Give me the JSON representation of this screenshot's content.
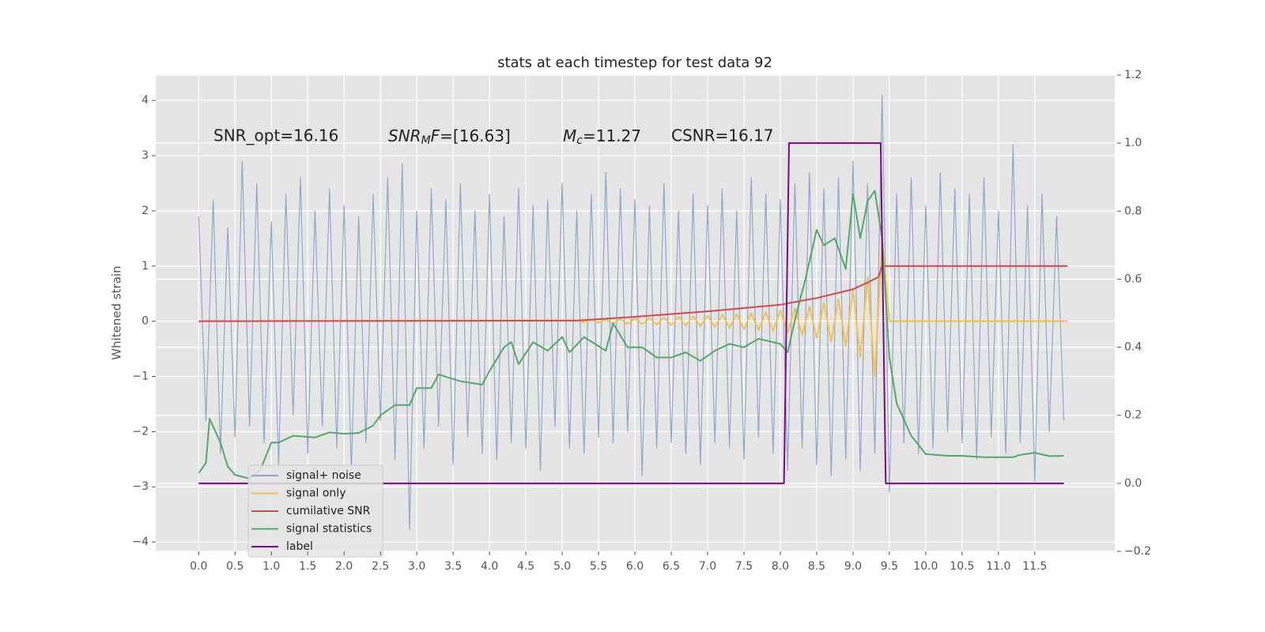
{
  "chart_data": {
    "type": "line",
    "title": "stats at each timestep for test data 92",
    "ylabel": "Whitened strain",
    "annotations": [
      "SNR_opt=16.16",
      [
        "SNR",
        "M",
        "F",
        "=[16.63]"
      ],
      [
        "M",
        "c",
        "=11.27"
      ],
      "CSNR=16.17"
    ],
    "xlim": [
      -0.59,
      12.6
    ],
    "xticks": [
      {
        "value": 0,
        "label": "0.0"
      },
      0.5,
      {
        "value": 1,
        "label": "1.0"
      },
      1.5,
      {
        "value": 2,
        "label": "2.0"
      },
      2.5,
      {
        "value": 3,
        "label": "3.0"
      },
      3.5,
      {
        "value": 4,
        "label": "4.0"
      },
      4.5,
      {
        "value": 5,
        "label": "5.0"
      },
      5.5,
      {
        "value": 6,
        "label": "6.0"
      },
      6.5,
      {
        "value": 7,
        "label": "7.0"
      },
      7.5,
      {
        "value": 8,
        "label": "8.0"
      },
      8.5,
      {
        "value": 9,
        "label": "9.0"
      },
      9.5,
      {
        "value": 10,
        "label": "10.0"
      },
      10.5,
      {
        "value": 11,
        "label": "11.0"
      },
      11.5
    ],
    "ylim": [
      -4.17,
      4.46
    ],
    "yticks": [
      {
        "value": -4,
        "label": "−4"
      },
      {
        "value": -3,
        "label": "−3"
      },
      {
        "value": -2,
        "label": "−2"
      },
      {
        "value": -1,
        "label": "−1"
      },
      0,
      1,
      2,
      3,
      4
    ],
    "y2lim": [
      -0.2,
      1.2
    ],
    "y2ticks": [
      {
        "value": -0.2,
        "label": "−0.2"
      },
      {
        "value": 0,
        "label": "0.0"
      },
      0.2,
      0.4,
      0.6,
      0.8,
      {
        "value": 1,
        "label": "1.0"
      },
      1.2
    ],
    "grid": true,
    "legend": "lower left",
    "series": [
      {
        "name": "signal+ noise",
        "color": "#92a6cb",
        "x": [
          0,
          0.1,
          0.2,
          0.3,
          0.4,
          0.5,
          0.6,
          0.7,
          0.8,
          0.9,
          1,
          1.1,
          1.2,
          1.3,
          1.4,
          1.5,
          1.6,
          1.7,
          1.8,
          1.9,
          2,
          2.1,
          2.2,
          2.3,
          2.4,
          2.5,
          2.6,
          2.7,
          2.8,
          2.9,
          3,
          3.1,
          3.2,
          3.3,
          3.4,
          3.5,
          3.6,
          3.7,
          3.8,
          3.9,
          4,
          4.1,
          4.2,
          4.3,
          4.4,
          4.5,
          4.6,
          4.7,
          4.8,
          4.9,
          5,
          5.1,
          5.2,
          5.3,
          5.4,
          5.5,
          5.6,
          5.7,
          5.8,
          5.9,
          6,
          6.1,
          6.2,
          6.3,
          6.4,
          6.5,
          6.6,
          6.7,
          6.8,
          6.9,
          7,
          7.1,
          7.2,
          7.3,
          7.4,
          7.5,
          7.6,
          7.7,
          7.8,
          7.9,
          8,
          8.1,
          8.2,
          8.3,
          8.4,
          8.5,
          8.6,
          8.7,
          8.8,
          8.9,
          9,
          9.1,
          9.2,
          9.3,
          9.4,
          9.5,
          9.6,
          9.7,
          9.8,
          9.9,
          10,
          10.1,
          10.2,
          10.3,
          10.4,
          10.5,
          10.6,
          10.7,
          10.8,
          10.9,
          11,
          11.1,
          11.2,
          11.3,
          11.4,
          11.5,
          11.6,
          11.7,
          11.8,
          11.9
        ],
        "values": [
          1.9,
          -1.8,
          2.2,
          -2.4,
          1.7,
          -2.1,
          2.9,
          -1.9,
          2.5,
          -2.2,
          1.8,
          -2.6,
          2.3,
          -1.7,
          2.6,
          -2.4,
          2.0,
          -1.9,
          2.4,
          -2.3,
          2.1,
          -2.7,
          1.9,
          -2.2,
          2.3,
          -1.8,
          2.6,
          -2.5,
          2.85,
          -3.78,
          2.0,
          -2.3,
          2.4,
          -1.9,
          2.2,
          -2.6,
          2.5,
          -2.1,
          2.0,
          -2.4,
          2.3,
          -2.5,
          1.9,
          -2.2,
          2.4,
          -2.3,
          2.1,
          -2.7,
          2.2,
          -1.9,
          2.5,
          -2.3,
          2.0,
          -2.4,
          2.3,
          -2.1,
          2.7,
          -2.2,
          2.4,
          -2.0,
          2.2,
          -2.8,
          2.1,
          -2.3,
          2.5,
          -2.2,
          2.0,
          -2.4,
          2.3,
          -2.6,
          2.1,
          -2.2,
          2.4,
          -2.3,
          2.0,
          -2.5,
          2.6,
          -2.1,
          2.3,
          -2.4,
          2.2,
          -2.7,
          2.5,
          -2.3,
          2.7,
          -2.6,
          2.4,
          -2.8,
          2.6,
          -2.5,
          2.9,
          -2.7,
          2.5,
          -2.4,
          4.1,
          -3.1,
          2.3,
          -2.2,
          2.6,
          -2.4,
          2.1,
          -2.3,
          2.7,
          -2.0,
          2.4,
          -2.2,
          2.3,
          -2.5,
          2.6,
          -2.1,
          2.0,
          -2.4,
          3.2,
          -2.2,
          2.1,
          -2.9,
          2.3,
          -2.0,
          1.9,
          -1.8
        ]
      },
      {
        "name": "signal only",
        "color": "#f2c14e",
        "x": [
          0,
          5.2,
          5.3,
          5.4,
          5.5,
          5.6,
          5.7,
          5.8,
          5.9,
          6,
          6.1,
          6.2,
          6.3,
          6.4,
          6.5,
          6.6,
          6.7,
          6.8,
          6.9,
          7,
          7.1,
          7.2,
          7.3,
          7.4,
          7.5,
          7.6,
          7.7,
          7.8,
          7.9,
          8,
          8.1,
          8.2,
          8.3,
          8.4,
          8.5,
          8.6,
          8.7,
          8.8,
          8.9,
          9,
          9.1,
          9.2,
          9.3,
          9.4,
          9.5,
          11.95
        ],
        "values": [
          0,
          0.02,
          -0.02,
          0.03,
          -0.03,
          0.03,
          -0.04,
          0.04,
          -0.05,
          0.05,
          -0.05,
          0.06,
          -0.06,
          0.07,
          -0.07,
          0.08,
          -0.08,
          0.09,
          -0.09,
          0.1,
          -0.11,
          0.12,
          -0.12,
          0.13,
          -0.14,
          0.15,
          -0.16,
          0.17,
          -0.18,
          0.2,
          -0.21,
          0.23,
          -0.25,
          0.27,
          -0.3,
          0.33,
          -0.36,
          0.4,
          -0.45,
          0.55,
          -0.65,
          0.8,
          -1.0,
          1.5,
          0,
          0
        ]
      },
      {
        "name": "cumilative SNR",
        "color": "#d24b4b",
        "x": [
          0,
          5.2,
          6,
          7,
          8,
          8.5,
          9,
          9.2,
          9.35,
          9.4,
          11.95
        ],
        "values": [
          0,
          0.01,
          0.08,
          0.18,
          0.3,
          0.42,
          0.58,
          0.7,
          0.8,
          1,
          1
        ]
      },
      {
        "name": "signal statistics",
        "color": "#55a868",
        "axis": "y2",
        "x": [
          0,
          0.1,
          0.15,
          0.3,
          0.4,
          0.5,
          0.7,
          0.85,
          1,
          1.1,
          1.3,
          1.6,
          1.8,
          2,
          2.2,
          2.4,
          2.5,
          2.7,
          2.9,
          3,
          3.2,
          3.3,
          3.6,
          3.9,
          4,
          4.2,
          4.3,
          4.4,
          4.6,
          4.8,
          5,
          5.1,
          5.3,
          5.6,
          5.7,
          5.9,
          6.1,
          6.3,
          6.5,
          6.7,
          6.9,
          7.1,
          7.3,
          7.5,
          7.7,
          7.9,
          8,
          8.1,
          8.2,
          8.35,
          8.5,
          8.6,
          8.75,
          8.9,
          9,
          9.1,
          9.2,
          9.3,
          9.4,
          9.5,
          9.6,
          9.8,
          10,
          10.3,
          10.5,
          10.8,
          11.2,
          11.3,
          11.5,
          11.7,
          11.9
        ],
        "values": [
          0.03,
          0.06,
          0.19,
          0.12,
          0.05,
          0.025,
          0.014,
          0.04,
          0.12,
          0.12,
          0.14,
          0.135,
          0.15,
          0.146,
          0.148,
          0.17,
          0.2,
          0.23,
          0.23,
          0.28,
          0.28,
          0.32,
          0.3,
          0.29,
          0.33,
          0.4,
          0.415,
          0.35,
          0.415,
          0.39,
          0.43,
          0.385,
          0.43,
          0.39,
          0.47,
          0.4,
          0.4,
          0.37,
          0.37,
          0.385,
          0.36,
          0.39,
          0.41,
          0.4,
          0.425,
          0.415,
          0.41,
          0.385,
          0.48,
          0.605,
          0.745,
          0.7,
          0.72,
          0.63,
          0.85,
          0.72,
          0.83,
          0.86,
          0.72,
          0.37,
          0.235,
          0.14,
          0.086,
          0.081,
          0.081,
          0.077,
          0.077,
          0.084,
          0.09,
          0.08,
          0.081
        ]
      },
      {
        "name": "label",
        "color": "#7b0a84",
        "axis": "y2",
        "x": [
          0,
          8.05,
          8.12,
          9.38,
          9.45,
          11.9
        ],
        "values": [
          0,
          0,
          1,
          1,
          0,
          0
        ]
      }
    ]
  }
}
